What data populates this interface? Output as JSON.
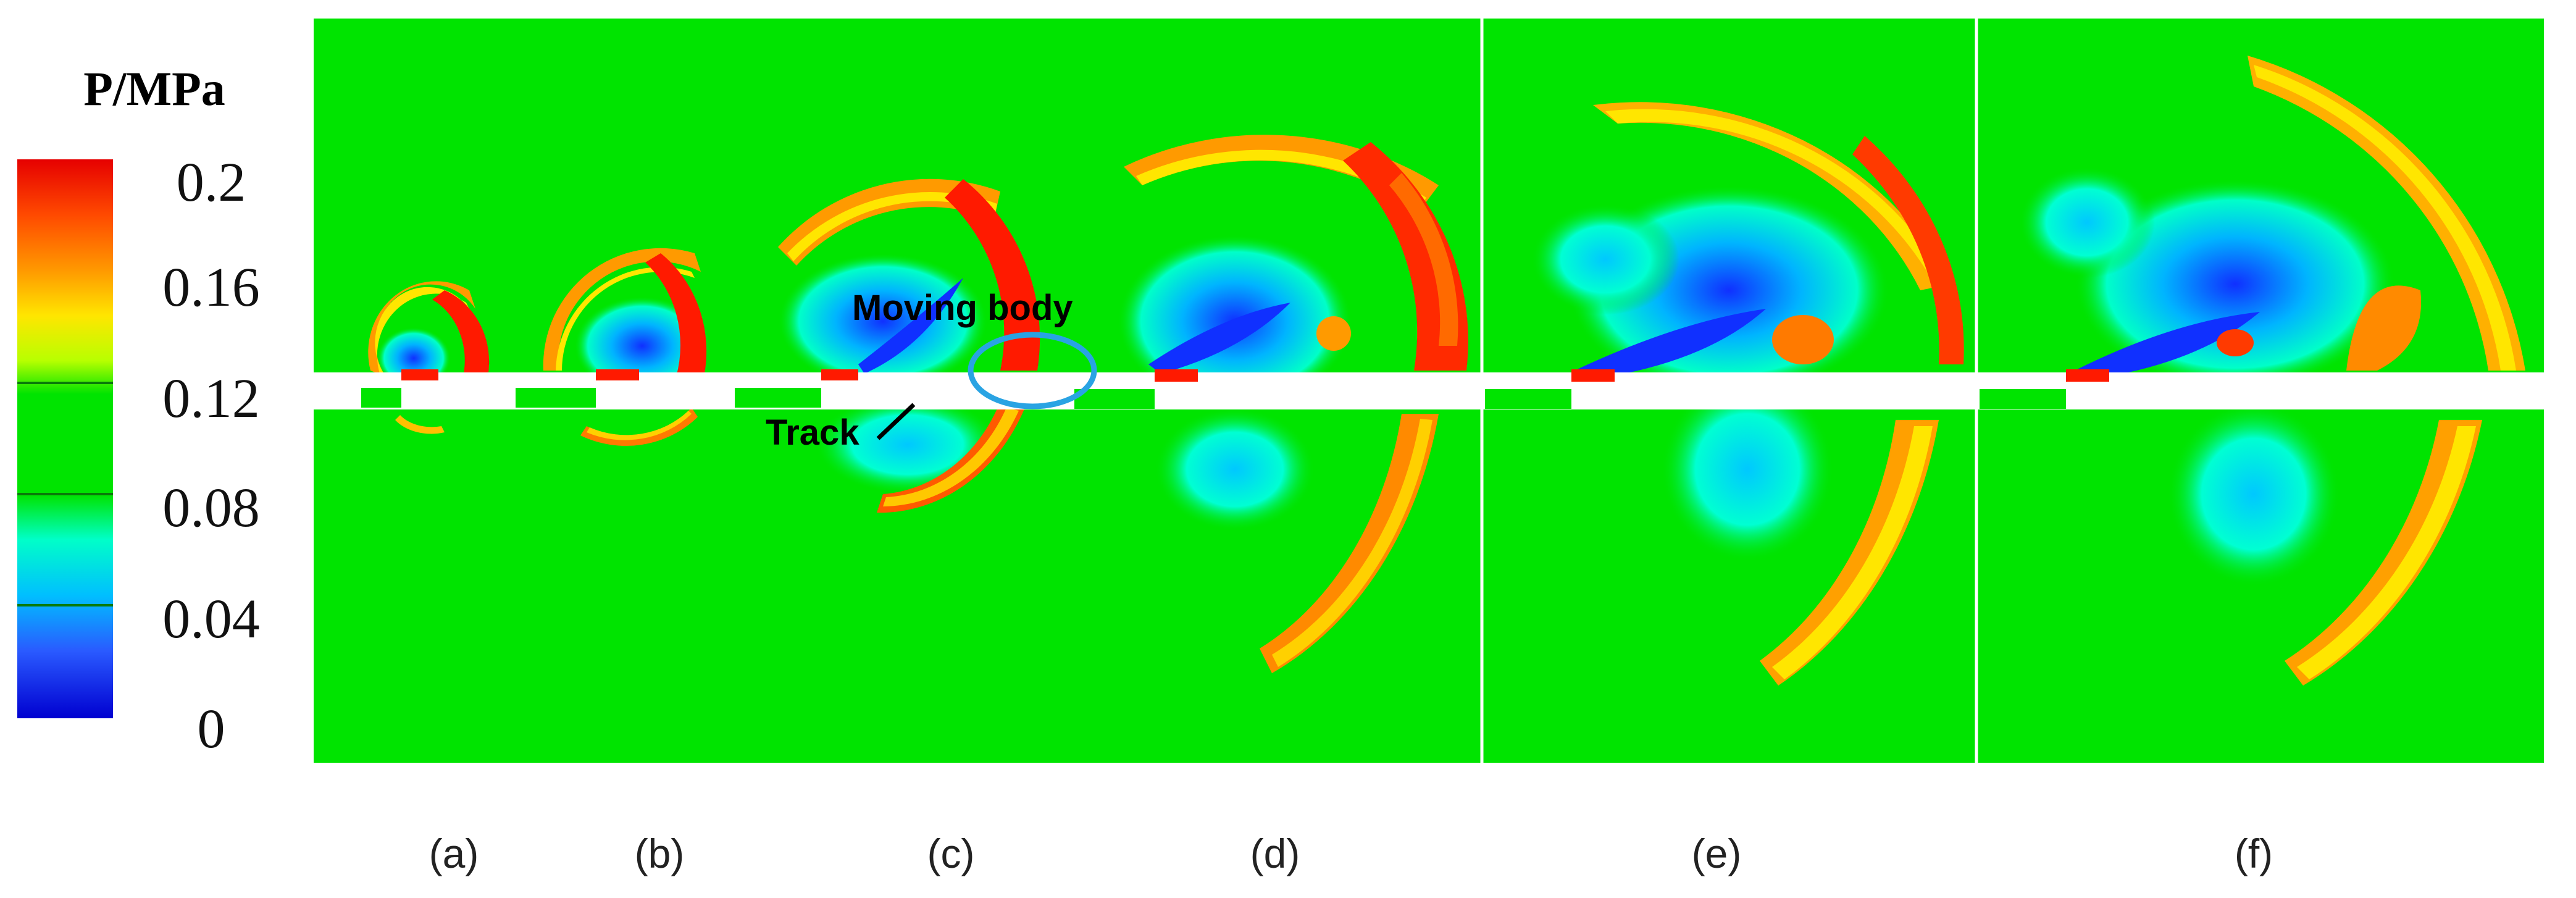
{
  "legend": {
    "title": "P/MPa",
    "ticks": [
      "0.2",
      "0.16",
      "0.12",
      "0.08",
      "0.04",
      "0"
    ],
    "colormap": [
      "#ff0000",
      "#ff6a00",
      "#ffd000",
      "#c8ff00",
      "#00e400",
      "#00ffd2",
      "#00a0ff",
      "#1d3cff",
      "#0000d6"
    ]
  },
  "colors": {
    "background_field": "#00e400",
    "track": "#ffffff",
    "highlight": "#29a3e3"
  },
  "panels": [
    {
      "label": "(a)"
    },
    {
      "label": "(b)"
    },
    {
      "label": "(c)"
    },
    {
      "label": "(d)"
    },
    {
      "label": "(e)"
    },
    {
      "label": "(f)"
    }
  ],
  "annotations": {
    "moving_body": "Moving body",
    "track": "Track"
  }
}
